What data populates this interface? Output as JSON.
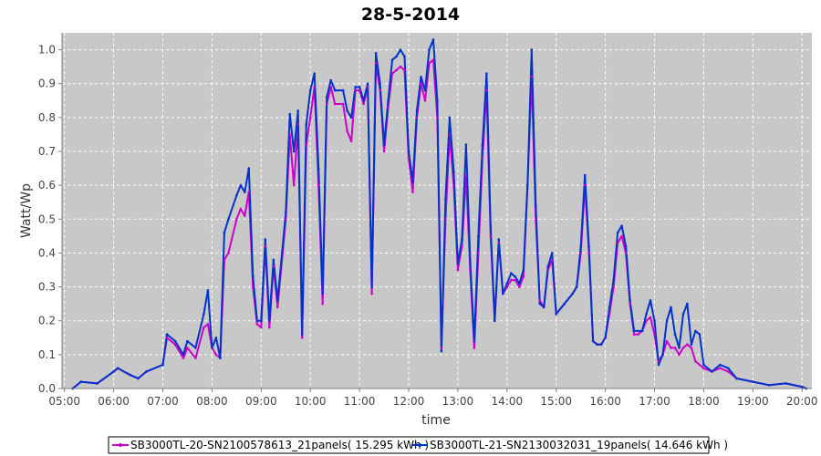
{
  "chart_data": {
    "type": "line",
    "title": "28-5-2014",
    "xlabel": "time",
    "ylabel": "Watt/Wp",
    "xlim": [
      "04:57",
      "20:12"
    ],
    "ylim": [
      0.0,
      1.05
    ],
    "xticks": [
      "05:00",
      "06:00",
      "07:00",
      "08:00",
      "09:00",
      "10:00",
      "11:00",
      "12:00",
      "13:00",
      "14:00",
      "15:00",
      "16:00",
      "17:00",
      "18:00",
      "19:00",
      "20:00"
    ],
    "yticks": [
      "0.0",
      "0.1",
      "0.2",
      "0.3",
      "0.4",
      "0.5",
      "0.6",
      "0.7",
      "0.8",
      "0.9",
      "1.0"
    ],
    "grid": true,
    "legend_position": "bottom",
    "series": [
      {
        "name": "SB3000TL-20-SN2100578613_21panels( 15.295 kWh )",
        "color": "#cc00cc",
        "points": [
          [
            "05:10",
            0.0
          ],
          [
            "05:20",
            0.02
          ],
          [
            "05:40",
            0.015
          ],
          [
            "06:00",
            0.05
          ],
          [
            "06:05",
            0.06
          ],
          [
            "06:20",
            0.04
          ],
          [
            "06:30",
            0.03
          ],
          [
            "06:40",
            0.05
          ],
          [
            "07:00",
            0.07
          ],
          [
            "07:05",
            0.15
          ],
          [
            "07:15",
            0.13
          ],
          [
            "07:25",
            0.09
          ],
          [
            "07:30",
            0.12
          ],
          [
            "07:40",
            0.09
          ],
          [
            "07:50",
            0.18
          ],
          [
            "07:55",
            0.19
          ],
          [
            "08:00",
            0.12
          ],
          [
            "08:05",
            0.1
          ],
          [
            "08:10",
            0.09
          ],
          [
            "08:15",
            0.38
          ],
          [
            "08:20",
            0.4
          ],
          [
            "08:30",
            0.5
          ],
          [
            "08:35",
            0.53
          ],
          [
            "08:40",
            0.51
          ],
          [
            "08:45",
            0.58
          ],
          [
            "08:50",
            0.3
          ],
          [
            "08:55",
            0.19
          ],
          [
            "09:00",
            0.18
          ],
          [
            "09:05",
            0.42
          ],
          [
            "09:10",
            0.18
          ],
          [
            "09:15",
            0.36
          ],
          [
            "09:20",
            0.24
          ],
          [
            "09:30",
            0.5
          ],
          [
            "09:35",
            0.75
          ],
          [
            "09:40",
            0.6
          ],
          [
            "09:45",
            0.78
          ],
          [
            "09:50",
            0.15
          ],
          [
            "09:55",
            0.72
          ],
          [
            "10:00",
            0.8
          ],
          [
            "10:05",
            0.89
          ],
          [
            "10:10",
            0.6
          ],
          [
            "10:15",
            0.25
          ],
          [
            "10:20",
            0.84
          ],
          [
            "10:25",
            0.89
          ],
          [
            "10:30",
            0.84
          ],
          [
            "10:40",
            0.84
          ],
          [
            "10:45",
            0.76
          ],
          [
            "10:50",
            0.73
          ],
          [
            "10:55",
            0.88
          ],
          [
            "11:00",
            0.88
          ],
          [
            "11:05",
            0.84
          ],
          [
            "11:10",
            0.89
          ],
          [
            "11:15",
            0.28
          ],
          [
            "11:20",
            0.96
          ],
          [
            "11:25",
            0.88
          ],
          [
            "11:30",
            0.7
          ],
          [
            "11:35",
            0.83
          ],
          [
            "11:40",
            0.93
          ],
          [
            "11:45",
            0.94
          ],
          [
            "11:50",
            0.95
          ],
          [
            "11:55",
            0.94
          ],
          [
            "12:00",
            0.68
          ],
          [
            "12:05",
            0.58
          ],
          [
            "12:10",
            0.8
          ],
          [
            "12:15",
            0.9
          ],
          [
            "12:20",
            0.85
          ],
          [
            "12:25",
            0.96
          ],
          [
            "12:30",
            0.97
          ],
          [
            "12:35",
            0.8
          ],
          [
            "12:40",
            0.12
          ],
          [
            "12:45",
            0.5
          ],
          [
            "12:50",
            0.75
          ],
          [
            "12:55",
            0.6
          ],
          [
            "13:00",
            0.35
          ],
          [
            "13:05",
            0.42
          ],
          [
            "13:10",
            0.63
          ],
          [
            "13:15",
            0.35
          ],
          [
            "13:20",
            0.12
          ],
          [
            "13:25",
            0.4
          ],
          [
            "13:30",
            0.68
          ],
          [
            "13:35",
            0.88
          ],
          [
            "13:40",
            0.45
          ],
          [
            "13:45",
            0.2
          ],
          [
            "13:50",
            0.43
          ],
          [
            "13:55",
            0.28
          ],
          [
            "14:00",
            0.3
          ],
          [
            "14:05",
            0.32
          ],
          [
            "14:10",
            0.32
          ],
          [
            "14:15",
            0.3
          ],
          [
            "14:20",
            0.33
          ],
          [
            "14:25",
            0.6
          ],
          [
            "14:30",
            0.92
          ],
          [
            "14:35",
            0.5
          ],
          [
            "14:40",
            0.26
          ],
          [
            "14:45",
            0.24
          ],
          [
            "14:50",
            0.35
          ],
          [
            "14:55",
            0.38
          ],
          [
            "15:00",
            0.22
          ],
          [
            "15:10",
            0.25
          ],
          [
            "15:20",
            0.28
          ],
          [
            "15:25",
            0.3
          ],
          [
            "15:30",
            0.4
          ],
          [
            "15:35",
            0.6
          ],
          [
            "15:40",
            0.4
          ],
          [
            "15:45",
            0.14
          ],
          [
            "15:50",
            0.13
          ],
          [
            "15:55",
            0.13
          ],
          [
            "16:00",
            0.15
          ],
          [
            "16:05",
            0.22
          ],
          [
            "16:10",
            0.3
          ],
          [
            "16:15",
            0.43
          ],
          [
            "16:20",
            0.45
          ],
          [
            "16:25",
            0.4
          ],
          [
            "16:30",
            0.25
          ],
          [
            "16:35",
            0.16
          ],
          [
            "16:40",
            0.16
          ],
          [
            "16:45",
            0.17
          ],
          [
            "16:50",
            0.2
          ],
          [
            "16:55",
            0.21
          ],
          [
            "17:00",
            0.16
          ],
          [
            "17:05",
            0.08
          ],
          [
            "17:10",
            0.1
          ],
          [
            "17:15",
            0.14
          ],
          [
            "17:20",
            0.12
          ],
          [
            "17:25",
            0.12
          ],
          [
            "17:30",
            0.1
          ],
          [
            "17:35",
            0.12
          ],
          [
            "17:40",
            0.13
          ],
          [
            "17:45",
            0.12
          ],
          [
            "17:50",
            0.08
          ],
          [
            "18:00",
            0.06
          ],
          [
            "18:10",
            0.05
          ],
          [
            "18:20",
            0.06
          ],
          [
            "18:30",
            0.05
          ],
          [
            "18:40",
            0.03
          ],
          [
            "19:00",
            0.02
          ],
          [
            "19:20",
            0.01
          ],
          [
            "19:40",
            0.015
          ],
          [
            "20:00",
            0.005
          ],
          [
            "20:05",
            0.0
          ]
        ]
      },
      {
        "name": "SB3000TL-21-SN2130032031_19panels( 14.646 kWh )",
        "color": "#0033cc",
        "points": [
          [
            "05:10",
            0.0
          ],
          [
            "05:20",
            0.02
          ],
          [
            "05:40",
            0.015
          ],
          [
            "06:00",
            0.05
          ],
          [
            "06:05",
            0.06
          ],
          [
            "06:20",
            0.04
          ],
          [
            "06:30",
            0.03
          ],
          [
            "06:40",
            0.05
          ],
          [
            "07:00",
            0.07
          ],
          [
            "07:05",
            0.16
          ],
          [
            "07:15",
            0.14
          ],
          [
            "07:25",
            0.1
          ],
          [
            "07:30",
            0.14
          ],
          [
            "07:40",
            0.12
          ],
          [
            "07:50",
            0.22
          ],
          [
            "07:55",
            0.29
          ],
          [
            "08:00",
            0.12
          ],
          [
            "08:05",
            0.15
          ],
          [
            "08:10",
            0.09
          ],
          [
            "08:15",
            0.46
          ],
          [
            "08:20",
            0.5
          ],
          [
            "08:30",
            0.57
          ],
          [
            "08:35",
            0.6
          ],
          [
            "08:40",
            0.58
          ],
          [
            "08:45",
            0.65
          ],
          [
            "08:50",
            0.33
          ],
          [
            "08:55",
            0.2
          ],
          [
            "09:00",
            0.2
          ],
          [
            "09:05",
            0.44
          ],
          [
            "09:10",
            0.2
          ],
          [
            "09:15",
            0.38
          ],
          [
            "09:20",
            0.26
          ],
          [
            "09:30",
            0.52
          ],
          [
            "09:35",
            0.81
          ],
          [
            "09:40",
            0.7
          ],
          [
            "09:45",
            0.82
          ],
          [
            "09:50",
            0.16
          ],
          [
            "09:55",
            0.78
          ],
          [
            "10:00",
            0.88
          ],
          [
            "10:05",
            0.93
          ],
          [
            "10:10",
            0.65
          ],
          [
            "10:15",
            0.28
          ],
          [
            "10:20",
            0.86
          ],
          [
            "10:25",
            0.91
          ],
          [
            "10:30",
            0.88
          ],
          [
            "10:40",
            0.88
          ],
          [
            "10:45",
            0.82
          ],
          [
            "10:50",
            0.8
          ],
          [
            "10:55",
            0.89
          ],
          [
            "11:00",
            0.89
          ],
          [
            "11:05",
            0.85
          ],
          [
            "11:10",
            0.9
          ],
          [
            "11:15",
            0.3
          ],
          [
            "11:20",
            0.99
          ],
          [
            "11:25",
            0.9
          ],
          [
            "11:30",
            0.72
          ],
          [
            "11:35",
            0.85
          ],
          [
            "11:40",
            0.97
          ],
          [
            "11:45",
            0.98
          ],
          [
            "11:50",
            1.0
          ],
          [
            "11:55",
            0.98
          ],
          [
            "12:00",
            0.7
          ],
          [
            "12:05",
            0.61
          ],
          [
            "12:10",
            0.82
          ],
          [
            "12:15",
            0.92
          ],
          [
            "12:20",
            0.88
          ],
          [
            "12:25",
            1.0
          ],
          [
            "12:30",
            1.03
          ],
          [
            "12:35",
            0.85
          ],
          [
            "12:40",
            0.11
          ],
          [
            "12:45",
            0.56
          ],
          [
            "12:50",
            0.8
          ],
          [
            "12:55",
            0.64
          ],
          [
            "13:00",
            0.37
          ],
          [
            "13:05",
            0.44
          ],
          [
            "13:10",
            0.72
          ],
          [
            "13:15",
            0.38
          ],
          [
            "13:20",
            0.14
          ],
          [
            "13:25",
            0.45
          ],
          [
            "13:30",
            0.72
          ],
          [
            "13:35",
            0.93
          ],
          [
            "13:40",
            0.48
          ],
          [
            "13:45",
            0.2
          ],
          [
            "13:50",
            0.44
          ],
          [
            "13:55",
            0.28
          ],
          [
            "14:00",
            0.31
          ],
          [
            "14:05",
            0.34
          ],
          [
            "14:10",
            0.33
          ],
          [
            "14:15",
            0.31
          ],
          [
            "14:20",
            0.35
          ],
          [
            "14:25",
            0.6
          ],
          [
            "14:30",
            1.0
          ],
          [
            "14:35",
            0.54
          ],
          [
            "14:40",
            0.25
          ],
          [
            "14:45",
            0.24
          ],
          [
            "14:50",
            0.36
          ],
          [
            "14:55",
            0.4
          ],
          [
            "15:00",
            0.22
          ],
          [
            "15:10",
            0.25
          ],
          [
            "15:20",
            0.28
          ],
          [
            "15:25",
            0.3
          ],
          [
            "15:30",
            0.42
          ],
          [
            "15:35",
            0.63
          ],
          [
            "15:40",
            0.42
          ],
          [
            "15:45",
            0.14
          ],
          [
            "15:50",
            0.13
          ],
          [
            "15:55",
            0.13
          ],
          [
            "16:00",
            0.15
          ],
          [
            "16:05",
            0.24
          ],
          [
            "16:10",
            0.32
          ],
          [
            "16:15",
            0.46
          ],
          [
            "16:20",
            0.48
          ],
          [
            "16:25",
            0.42
          ],
          [
            "16:30",
            0.26
          ],
          [
            "16:35",
            0.17
          ],
          [
            "16:40",
            0.17
          ],
          [
            "16:45",
            0.17
          ],
          [
            "16:50",
            0.22
          ],
          [
            "16:55",
            0.26
          ],
          [
            "17:00",
            0.2
          ],
          [
            "17:05",
            0.07
          ],
          [
            "17:10",
            0.1
          ],
          [
            "17:15",
            0.2
          ],
          [
            "17:20",
            0.24
          ],
          [
            "17:25",
            0.16
          ],
          [
            "17:30",
            0.12
          ],
          [
            "17:35",
            0.22
          ],
          [
            "17:40",
            0.25
          ],
          [
            "17:45",
            0.13
          ],
          [
            "17:50",
            0.17
          ],
          [
            "17:55",
            0.16
          ],
          [
            "18:00",
            0.07
          ],
          [
            "18:10",
            0.05
          ],
          [
            "18:20",
            0.07
          ],
          [
            "18:30",
            0.06
          ],
          [
            "18:40",
            0.03
          ],
          [
            "19:00",
            0.02
          ],
          [
            "19:20",
            0.01
          ],
          [
            "19:40",
            0.015
          ],
          [
            "20:00",
            0.005
          ],
          [
            "20:05",
            0.0
          ]
        ]
      }
    ]
  }
}
